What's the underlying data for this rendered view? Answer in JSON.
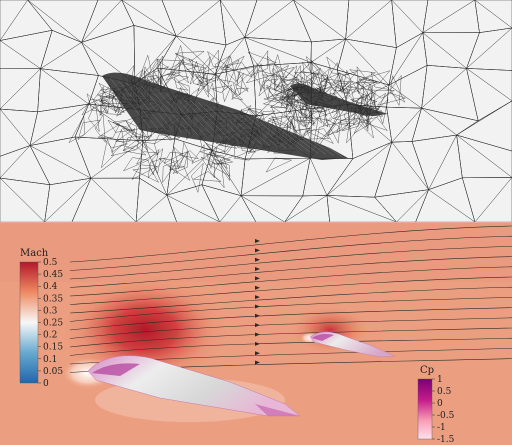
{
  "mach_colorbar": {
    "title": "Mach",
    "ticks": [
      "0.5",
      "0.45",
      "0.4",
      "0.35",
      "0.3",
      "0.25",
      "0.2",
      "0.15",
      "0.1",
      "0.05",
      "0"
    ]
  },
  "cp_colorbar": {
    "title": "Cp",
    "ticks": [
      "1",
      "0.5",
      "0",
      "-0.5",
      "-1",
      "-1.5"
    ]
  },
  "colors": {
    "mesh_background": "#f1f1f1",
    "mesh_line": "#1a1a1a",
    "flow_background": "#ec9f80",
    "mach_high": "#b2182b",
    "mach_mid": "#f7f7f7",
    "mach_low": "#2166ac",
    "cp_high": "#7a0177",
    "cp_low": "#fde0ef"
  }
}
